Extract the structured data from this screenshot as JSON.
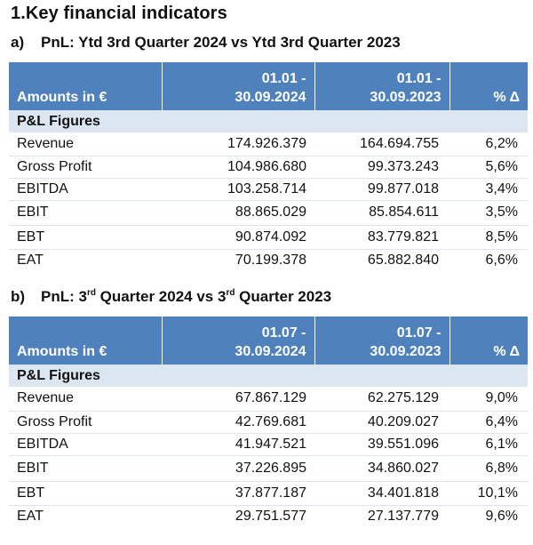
{
  "title": "1.Key financial indicators",
  "section_a": {
    "letter": "a)",
    "title": "PnL: Ytd 3rd Quarter 2024 vs Ytd 3rd Quarter 2023",
    "header": {
      "amounts": "Amounts in €",
      "col1_line1": "01.01 -",
      "col1_line2": "30.09.2024",
      "col2_line1": "01.01 -",
      "col2_line2": "30.09.2023",
      "delta": "% Δ"
    },
    "group_label": "P&L Figures",
    "rows": [
      {
        "label": "Revenue",
        "v2024": "174.926.379",
        "v2023": "164.694.755",
        "delta": "6,2%"
      },
      {
        "label": "Gross Profit",
        "v2024": "104.986.680",
        "v2023": "99.373.243",
        "delta": "5,6%"
      },
      {
        "label": "EBITDA",
        "v2024": "103.258.714",
        "v2023": "99.877.018",
        "delta": "3,4%"
      },
      {
        "label": "EBIT",
        "v2024": "88.865.029",
        "v2023": "85.854.611",
        "delta": "3,5%"
      },
      {
        "label": "EBT",
        "v2024": "90.874.092",
        "v2023": "83.779.821",
        "delta": "8,5%"
      },
      {
        "label": "EAT",
        "v2024": "70.199.378",
        "v2023": "65.882.840",
        "delta": "6,6%"
      }
    ]
  },
  "section_b": {
    "letter": "b)",
    "title_part1": "PnL: 3",
    "title_sup1": "rd",
    "title_part2": " Quarter 2024 vs 3",
    "title_sup2": "rd",
    "title_part3": " Quarter 2023",
    "header": {
      "amounts": "Amounts in €",
      "col1_line1": "01.07 -",
      "col1_line2": "30.09.2024",
      "col2_line1": "01.07 -",
      "col2_line2": "30.09.2023",
      "delta": "% Δ"
    },
    "group_label": "P&L Figures",
    "rows": [
      {
        "label": "Revenue",
        "v2024": "67.867.129",
        "v2023": "62.275.129",
        "delta": "9,0%"
      },
      {
        "label": "Gross Profit",
        "v2024": "42.769.681",
        "v2023": "40.209.027",
        "delta": "6,4%"
      },
      {
        "label": "EBITDA",
        "v2024": "41.947.521",
        "v2023": "39.551.096",
        "delta": "6,1%"
      },
      {
        "label": "EBIT",
        "v2024": "37.226.895",
        "v2023": "34.860.027",
        "delta": "6,8%"
      },
      {
        "label": "EBT",
        "v2024": "37.877.187",
        "v2023": "34.401.818",
        "delta": "10,1%"
      },
      {
        "label": "EAT",
        "v2024": "29.751.577",
        "v2023": "27.137.779",
        "delta": "9,6%"
      }
    ]
  }
}
